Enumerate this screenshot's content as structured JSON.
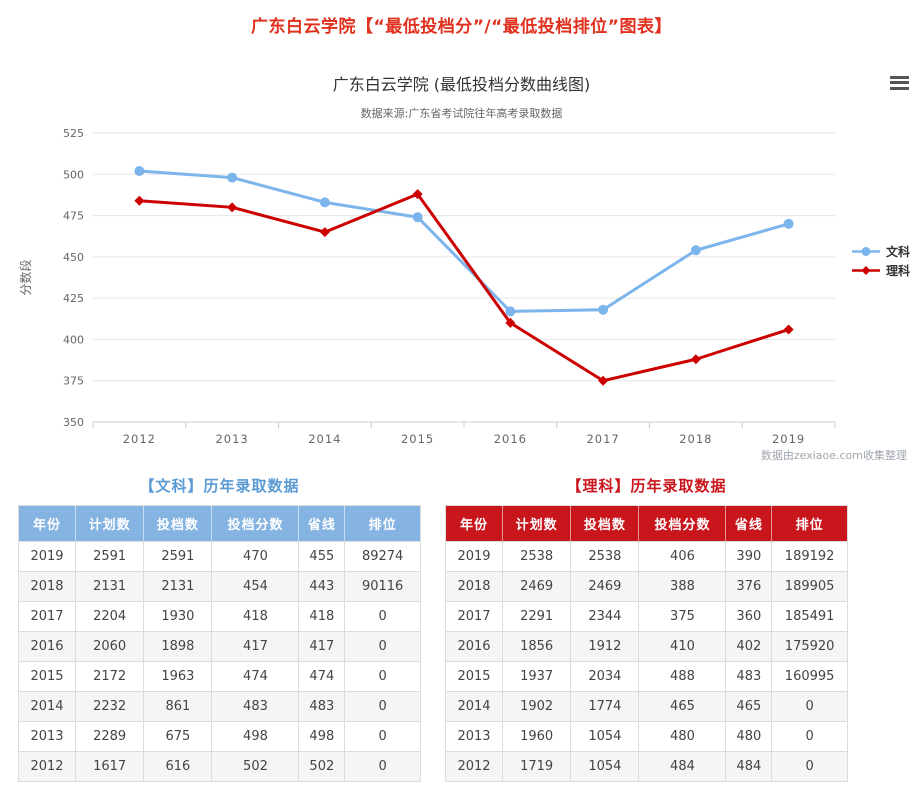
{
  "header": {
    "title": "广东白云学院【“最低投档分”/“最低投档排位”图表】",
    "color": "#e0301e"
  },
  "chart_data": {
    "type": "line",
    "title": "广东白云学院 (最低投档分数曲线图)",
    "subtitle": "数据来源:广东省考试院往年高考录取数据",
    "categories": [
      "2012",
      "2013",
      "2014",
      "2015",
      "2016",
      "2017",
      "2018",
      "2019"
    ],
    "series": [
      {
        "name": "文科",
        "color": "#7cb5ec",
        "marker": "circle",
        "values": [
          502,
          498,
          483,
          474,
          417,
          418,
          454,
          470
        ]
      },
      {
        "name": "理科",
        "color": "#cc0000",
        "marker": "diamond",
        "values": [
          484,
          480,
          465,
          488,
          410,
          375,
          388,
          406
        ]
      }
    ],
    "xlabel": "",
    "ylabel": "分数段",
    "ylim": [
      350,
      525
    ],
    "ytick_step": 25,
    "grid": true,
    "legend_position": "right",
    "watermark": "数据由zexiaoe.com收集整理",
    "menu_icon": "hamburger-icon"
  },
  "tables": [
    {
      "title": "【文科】历年录取数据",
      "accent": "#5b9bd5",
      "header_bg": "#85b3e2",
      "columns": [
        "年份",
        "计划数",
        "投档数",
        "投档分数",
        "省线",
        "排位"
      ],
      "rows": [
        [
          "2019",
          "2591",
          "2591",
          "470",
          "455",
          "89274"
        ],
        [
          "2018",
          "2131",
          "2131",
          "454",
          "443",
          "90116"
        ],
        [
          "2017",
          "2204",
          "1930",
          "418",
          "418",
          "0"
        ],
        [
          "2016",
          "2060",
          "1898",
          "417",
          "417",
          "0"
        ],
        [
          "2015",
          "2172",
          "1963",
          "474",
          "474",
          "0"
        ],
        [
          "2014",
          "2232",
          "861",
          "483",
          "483",
          "0"
        ],
        [
          "2013",
          "2289",
          "675",
          "498",
          "498",
          "0"
        ],
        [
          "2012",
          "1617",
          "616",
          "502",
          "502",
          "0"
        ]
      ]
    },
    {
      "title": "【理科】历年录取数据",
      "accent": "#c9161d",
      "header_bg": "#c9161d",
      "columns": [
        "年份",
        "计划数",
        "投档数",
        "投档分数",
        "省线",
        "排位"
      ],
      "rows": [
        [
          "2019",
          "2538",
          "2538",
          "406",
          "390",
          "189192"
        ],
        [
          "2018",
          "2469",
          "2469",
          "388",
          "376",
          "189905"
        ],
        [
          "2017",
          "2291",
          "2344",
          "375",
          "360",
          "185491"
        ],
        [
          "2016",
          "1856",
          "1912",
          "410",
          "402",
          "175920"
        ],
        [
          "2015",
          "1937",
          "2034",
          "488",
          "483",
          "160995"
        ],
        [
          "2014",
          "1902",
          "1774",
          "465",
          "465",
          "0"
        ],
        [
          "2013",
          "1960",
          "1054",
          "480",
          "480",
          "0"
        ],
        [
          "2012",
          "1719",
          "1054",
          "484",
          "484",
          "0"
        ]
      ]
    }
  ]
}
